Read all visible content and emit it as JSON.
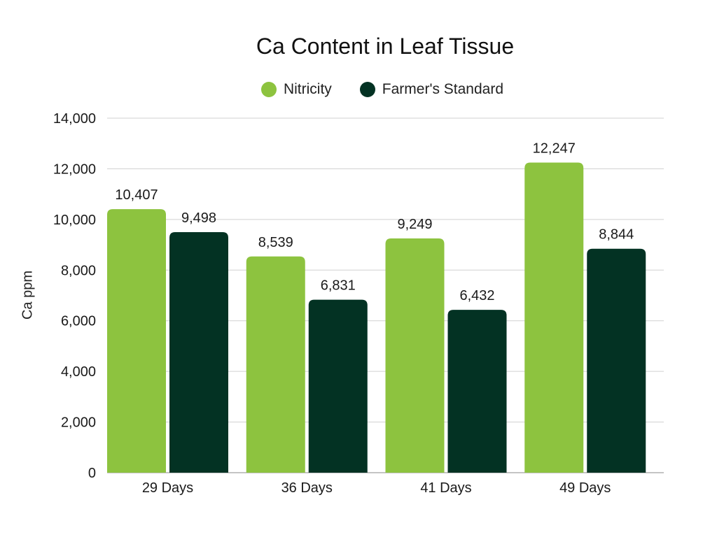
{
  "chart_data": {
    "type": "bar",
    "title": "Ca Content in Leaf Tissue",
    "xlabel": "",
    "ylabel": "Ca ppm",
    "categories": [
      "29 Days",
      "36 Days",
      "41 Days",
      "49 Days"
    ],
    "series": [
      {
        "name": "Nitricity",
        "color": "#8dc33f",
        "values": [
          10407,
          8539,
          9249,
          12247
        ],
        "labels": [
          "10,407",
          "8,539",
          "9,249",
          "12,247"
        ]
      },
      {
        "name": "Farmer's Standard",
        "color": "#033223",
        "values": [
          9498,
          6831,
          6432,
          8844
        ],
        "labels": [
          "9,498",
          "6,831",
          "6,432",
          "8,844"
        ]
      }
    ],
    "ylim": [
      0,
      14000
    ],
    "yticks": [
      0,
      2000,
      4000,
      6000,
      8000,
      10000,
      12000,
      14000
    ],
    "ytick_labels": [
      "0",
      "2,000",
      "4,000",
      "6,000",
      "8,000",
      "10,000",
      "12,000",
      "14,000"
    ],
    "grid": true,
    "legend_position": "top-center"
  }
}
